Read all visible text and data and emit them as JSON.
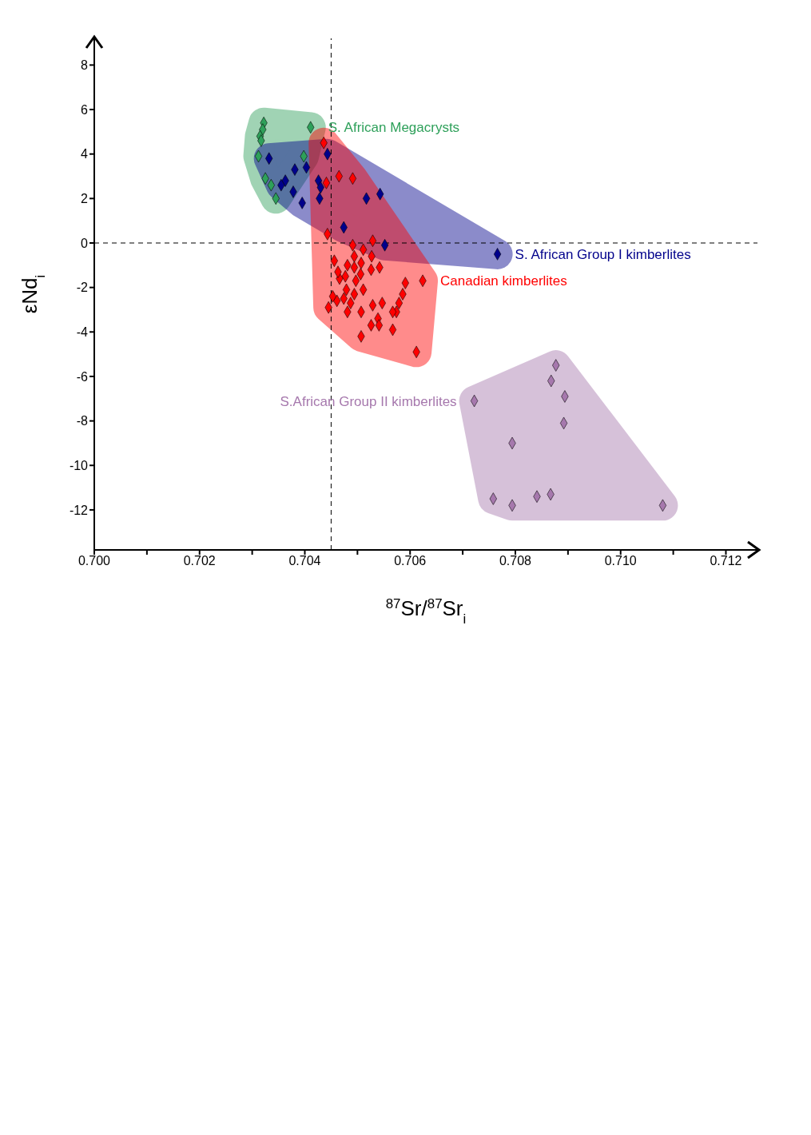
{
  "chart_data": {
    "type": "scatter",
    "xlabel": "$^{87}$Sr/$^{87}$Sr$_{i}$",
    "ylabel": "εNd$_{i}$",
    "marker": "diamond",
    "xlim": [
      0.7,
      0.7126
    ],
    "ylim": [
      -13.8,
      9.2
    ],
    "xticks": [
      {
        "value": 0.7,
        "label": "0.700"
      },
      {
        "value": 0.701,
        "label": null
      },
      {
        "value": 0.702,
        "label": "0.702"
      },
      {
        "value": 0.703,
        "label": null
      },
      {
        "value": 0.704,
        "label": "0.704"
      },
      {
        "value": 0.705,
        "label": null
      },
      {
        "value": 0.706,
        "label": "0.706"
      },
      {
        "value": 0.707,
        "label": null
      },
      {
        "value": 0.708,
        "label": "0.708"
      },
      {
        "value": 0.709,
        "label": null
      },
      {
        "value": 0.71,
        "label": "0.710"
      },
      {
        "value": 0.711,
        "label": null
      },
      {
        "value": 0.712,
        "label": "0.712"
      }
    ],
    "yticks": [
      -12,
      -10,
      -8,
      -6,
      -4,
      -2,
      0,
      2,
      4,
      6,
      8
    ],
    "ref_lines": [
      {
        "axis": "x",
        "value": 0.7045,
        "line_style": "dashed",
        "color": "#000000"
      },
      {
        "axis": "y",
        "value": 0,
        "line_style": "dashed",
        "color": "#000000"
      }
    ],
    "series": [
      {
        "name": "S. African Megacrysts",
        "color": "#2ea05a",
        "x": [
          0.70411,
          0.70322,
          0.7032,
          0.70315,
          0.70317,
          0.70312,
          0.70398,
          0.70325,
          0.70336,
          0.70345
        ],
        "values": [
          5.2,
          5.4,
          5.1,
          4.8,
          4.6,
          3.9,
          3.9,
          2.9,
          2.6,
          2.0
        ]
      },
      {
        "name": "S. African Group I kimberlites",
        "color": "#00008b",
        "x": [
          0.70543,
          0.70517,
          0.70474,
          0.70552,
          0.70443,
          0.70426,
          0.7043,
          0.70428,
          0.70403,
          0.70395,
          0.70381,
          0.70378,
          0.70363,
          0.70355,
          0.70332,
          0.70766
        ],
        "values": [
          2.2,
          2.0,
          0.7,
          -0.1,
          4.0,
          2.8,
          2.5,
          2.0,
          3.4,
          1.8,
          3.3,
          2.3,
          2.8,
          2.6,
          3.8,
          -0.5
        ]
      },
      {
        "name": "Canadian kimberlites",
        "color": "#ff0000",
        "x": [
          0.70491,
          0.70465,
          0.70441,
          0.70436,
          0.70443,
          0.70624,
          0.70612,
          0.70591,
          0.70586,
          0.70579,
          0.70574,
          0.70567,
          0.70567,
          0.70547,
          0.70539,
          0.70541,
          0.70529,
          0.70526,
          0.70507,
          0.70542,
          0.70529,
          0.70527,
          0.70526,
          0.70511,
          0.70507,
          0.70506,
          0.70511,
          0.70507,
          0.70491,
          0.70494,
          0.70494,
          0.70497,
          0.70494,
          0.70487,
          0.70481,
          0.70481,
          0.70477,
          0.70479,
          0.70474,
          0.70466,
          0.70461,
          0.70456,
          0.70463,
          0.70453,
          0.70445
        ],
        "values": [
          2.9,
          3.0,
          2.7,
          4.5,
          0.4,
          -1.7,
          -4.9,
          -1.8,
          -2.3,
          -2.7,
          -3.1,
          -3.1,
          -3.9,
          -2.7,
          -3.4,
          -3.7,
          -2.8,
          -3.7,
          -4.2,
          -1.1,
          0.1,
          -0.6,
          -1.2,
          -0.3,
          -0.9,
          -1.4,
          -2.1,
          -3.1,
          -0.1,
          -0.6,
          -1.1,
          -1.7,
          -2.3,
          -2.7,
          -3.1,
          -1.0,
          -1.5,
          -2.1,
          -2.5,
          -1.6,
          -2.6,
          -0.8,
          -1.3,
          -2.4,
          -2.9
        ]
      },
      {
        "name": "S.African Group II kimberlites",
        "color": "#a678ad",
        "x": [
          0.7108,
          0.70877,
          0.70868,
          0.70894,
          0.70892,
          0.70867,
          0.70841,
          0.70794,
          0.70794,
          0.70758,
          0.70722
        ],
        "values": [
          -11.8,
          -5.5,
          -6.2,
          -6.9,
          -8.1,
          -11.3,
          -11.4,
          -9.0,
          -11.8,
          -11.5,
          -7.1
        ]
      }
    ]
  }
}
